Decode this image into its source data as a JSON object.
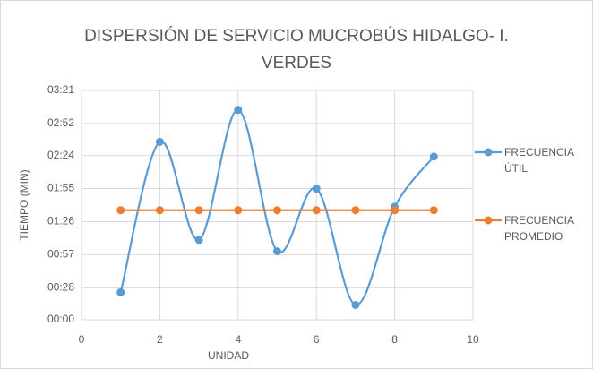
{
  "chart_data": {
    "type": "line",
    "title": "DISPERSIÓN DE SERVICIO MUCROBÚS HIDALGO- I. VERDES",
    "x_label": "UNIDAD",
    "y_label": "TIEMPO (MIN)",
    "x": [
      1,
      2,
      3,
      4,
      5,
      6,
      7,
      8,
      9
    ],
    "series": [
      {
        "name": "FRECUENCIA ÚTIL",
        "color": "#5b9bd5",
        "values": [
          24,
          156,
          70,
          184,
          60,
          115,
          13,
          99,
          143
        ]
      },
      {
        "name": "FRECUENCIA PROMEDIO",
        "color": "#ed7d31",
        "values": [
          96,
          96,
          96,
          96,
          96,
          96,
          96,
          96,
          96
        ]
      }
    ],
    "xlim": [
      0,
      10
    ],
    "xticks": [
      0,
      2,
      4,
      6,
      8,
      10
    ],
    "ylim": [
      0,
      201
    ],
    "yticks": [
      {
        "value": 0,
        "label": "00:00"
      },
      {
        "value": 28,
        "label": "00:28"
      },
      {
        "value": 57,
        "label": "00:57"
      },
      {
        "value": 86,
        "label": "01:26"
      },
      {
        "value": 115,
        "label": "01:55"
      },
      {
        "value": 144,
        "label": "02:24"
      },
      {
        "value": 172,
        "label": "02:52"
      },
      {
        "value": 201,
        "label": "03:21"
      }
    ],
    "grid": true,
    "smooth": true,
    "legend": "right"
  }
}
